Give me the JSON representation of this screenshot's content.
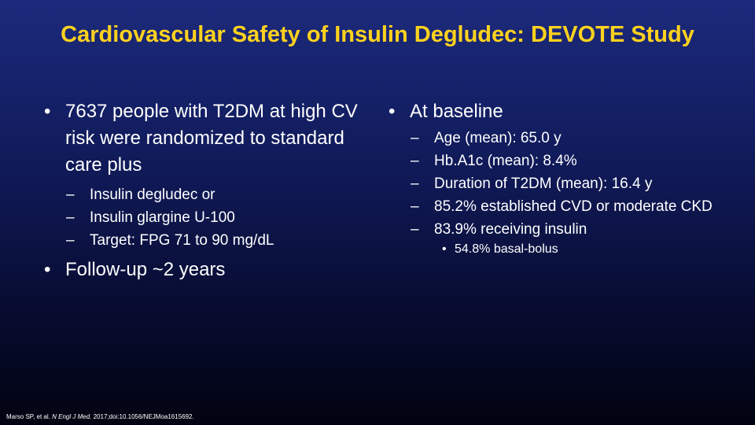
{
  "title": "Cardiovascular Safety of Insulin Degludec: DEVOTE Study",
  "bullet_glyph": "•",
  "dash_glyph": "–",
  "left": {
    "point1": "7637 people with T2DM at high CV risk were randomized to standard care plus",
    "sub": [
      "Insulin degludec or",
      "Insulin glargine U-100",
      "Target: FPG 71 to 90 mg/dL"
    ],
    "point2": "Follow-up ~2 years"
  },
  "right": {
    "heading": "At baseline",
    "sub": [
      "Age (mean): 65.0 y",
      "Hb.A1c (mean): 8.4%",
      "Duration of T2DM (mean): 16.4 y",
      "85.2% established CVD or moderate CKD",
      "83.9% receiving insulin"
    ],
    "subsub": "54.8% basal-bolus"
  },
  "citation": {
    "authors": "Marso SP, et al.",
    "journal": "N Engl J Med.",
    "details": "2017;doi:10.1056/NEJMoa1615692."
  }
}
